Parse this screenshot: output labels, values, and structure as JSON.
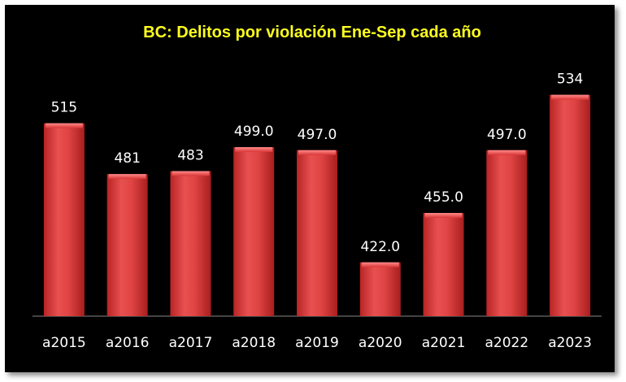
{
  "chart_data": {
    "type": "bar",
    "title": "BC: Delitos por violación Ene-Sep cada año",
    "xlabel": "",
    "ylabel": "",
    "categories": [
      "a2015",
      "a2016",
      "a2017",
      "a2018",
      "a2019",
      "a2020",
      "a2021",
      "a2022",
      "a2023"
    ],
    "values": [
      515,
      481,
      483,
      499,
      497,
      422,
      455,
      497,
      534
    ],
    "value_labels": [
      "515",
      "481",
      "483",
      "499.0",
      "497.0",
      "422.0",
      "455.0",
      "497.0",
      "534"
    ],
    "ylim": [
      386,
      540
    ],
    "grid": false,
    "legend": "none",
    "colors": {
      "background": "#000000",
      "bar": "#d93636",
      "bar_highlight": "#f07070",
      "title": "#ffff1e",
      "labels": "#ffffff"
    }
  }
}
